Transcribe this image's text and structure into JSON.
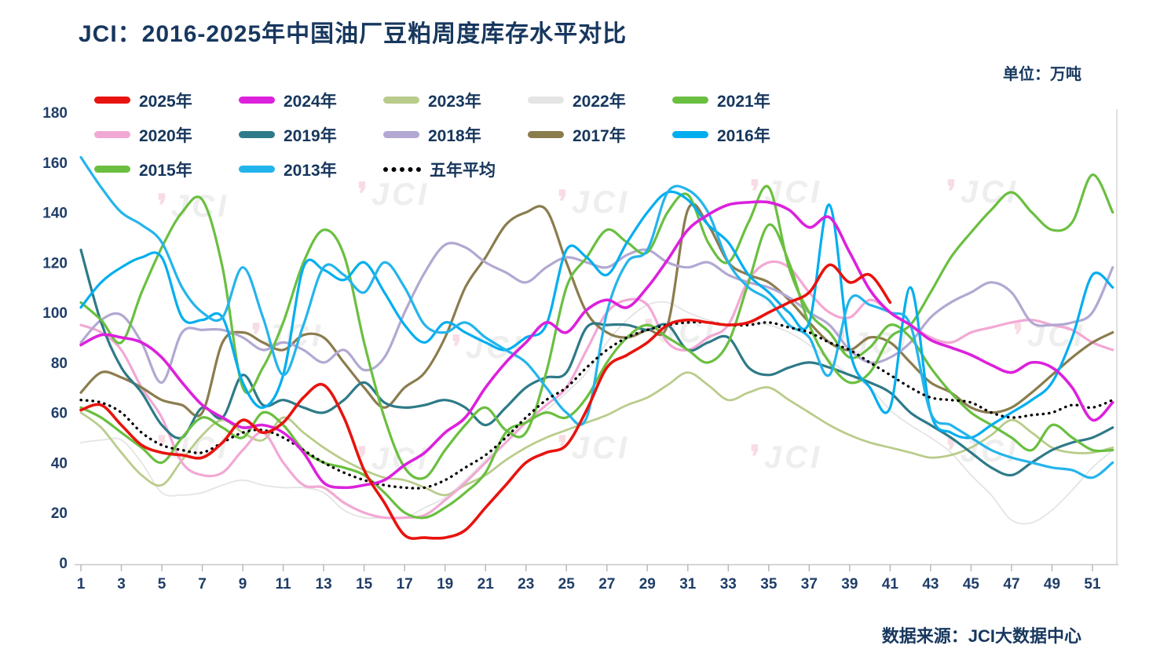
{
  "header": {
    "title": "JCI：2016-2025年中国油厂豆粕周度库存水平对比",
    "unit_label": "单位：万吨"
  },
  "footer": {
    "source": "数据来源：JCI大数据中心"
  },
  "watermark": {
    "text": "JCI"
  },
  "legend": {
    "rows": [
      [
        {
          "label": "2025年",
          "color": "#e8130e"
        },
        {
          "label": "2024年",
          "color": "#dc21dc"
        },
        {
          "label": "2023年",
          "color": "#b9cc8b"
        },
        {
          "label": "2022年",
          "color": "#e4e4e4"
        },
        {
          "label": "2021年",
          "color": "#6abf40"
        }
      ],
      [
        {
          "label": "2020年",
          "color": "#f2a8d4"
        },
        {
          "label": "2019年",
          "color": "#2e7a88"
        },
        {
          "label": "2018年",
          "color": "#b2a8d2"
        },
        {
          "label": "2017年",
          "color": "#8b7c4e"
        },
        {
          "label": "2016年",
          "color": "#00aeef"
        }
      ],
      [
        {
          "label": "2015年",
          "color": "#6abf40"
        },
        {
          "label": "2013年",
          "color": "#24b4ec"
        },
        {
          "label": "五年平均",
          "color": "#000000",
          "style": "dotted"
        }
      ]
    ]
  },
  "chart_data": {
    "type": "line",
    "title": "JCI：2016-2025年中国油厂豆粕周度库存水平对比",
    "unit": "万吨",
    "xlabel": "",
    "ylabel": "",
    "x_range": [
      1,
      52
    ],
    "x_ticks": [
      1,
      3,
      5,
      7,
      9,
      11,
      13,
      15,
      17,
      19,
      21,
      23,
      25,
      27,
      29,
      31,
      33,
      35,
      37,
      39,
      41,
      43,
      45,
      47,
      49,
      51
    ],
    "ylim": [
      0,
      180
    ],
    "y_ticks": [
      0,
      20,
      40,
      60,
      80,
      100,
      120,
      140,
      160,
      180
    ],
    "grid": false,
    "legend_position": "top-left-inside",
    "series": [
      {
        "name": "2025年",
        "color": "#e8130e",
        "width": 3.6,
        "values": [
          61,
          63,
          55,
          47,
          44,
          43,
          42,
          48,
          57,
          52,
          56,
          66,
          71,
          58,
          37,
          24,
          11,
          10,
          10,
          13,
          22,
          31,
          40,
          44,
          47,
          61,
          78,
          83,
          88,
          95,
          97,
          96,
          95,
          96,
          100,
          104,
          108,
          119,
          112,
          115,
          104
        ]
      },
      {
        "name": "2024年",
        "color": "#dc21dc",
        "width": 3.6,
        "values": [
          87,
          91,
          90,
          88,
          82,
          72,
          63,
          58,
          54,
          55,
          52,
          44,
          32,
          30,
          31,
          33,
          39,
          44,
          52,
          58,
          70,
          80,
          88,
          96,
          92,
          101,
          105,
          102,
          110,
          121,
          133,
          139,
          143,
          144,
          144,
          141,
          134,
          138,
          124,
          109,
          100,
          95,
          89,
          86,
          83,
          79,
          76,
          80,
          78,
          70,
          57,
          64
        ]
      },
      {
        "name": "2023年",
        "color": "#b9cc8b",
        "width": 2.8,
        "values": [
          60,
          54,
          44,
          35,
          31,
          41,
          51,
          57,
          52,
          49,
          58,
          52,
          46,
          41,
          37,
          34,
          33,
          30,
          27,
          31,
          35,
          41,
          46,
          50,
          53,
          56,
          59,
          63,
          66,
          71,
          76,
          71,
          65,
          68,
          70,
          65,
          60,
          55,
          51,
          48,
          46,
          44,
          42,
          43,
          46,
          51,
          57,
          52,
          46,
          44,
          44,
          46
        ]
      },
      {
        "name": "2022年",
        "color": "#e4e4e4",
        "width": 1.8,
        "values": [
          48,
          49,
          49,
          40,
          28,
          27,
          28,
          31,
          33,
          31,
          30,
          30,
          28,
          21,
          18,
          18,
          18,
          22,
          26,
          33,
          41,
          50,
          56,
          61,
          68,
          76,
          88,
          97,
          103,
          104,
          100,
          97,
          95,
          96,
          95,
          92,
          87,
          81,
          75,
          70,
          61,
          55,
          50,
          44,
          35,
          27,
          17,
          16,
          21,
          29,
          38,
          45
        ]
      },
      {
        "name": "2021年",
        "color": "#6abf40",
        "width": 3.2,
        "values": [
          104,
          97,
          88,
          108,
          126,
          140,
          145,
          118,
          70,
          78,
          96,
          120,
          133,
          123,
          88,
          58,
          38,
          34,
          45,
          55,
          62,
          53,
          52,
          76,
          110,
          122,
          133,
          128,
          124,
          140,
          147,
          128,
          120,
          136,
          150,
          118,
          100,
          92,
          82,
          86,
          95,
          90,
          78,
          68,
          60,
          55,
          50,
          45,
          55,
          50,
          45,
          45
        ]
      },
      {
        "name": "2020年",
        "color": "#f2a8d4",
        "width": 3.2,
        "values": [
          95,
          92,
          85,
          70,
          58,
          40,
          35,
          36,
          45,
          52,
          40,
          31,
          30,
          24,
          20,
          18,
          18,
          19,
          25,
          32,
          40,
          48,
          56,
          63,
          70,
          85,
          100,
          105,
          103,
          88,
          85,
          90,
          95,
          113,
          120,
          118,
          108,
          100,
          98,
          105,
          100,
          95,
          90,
          88,
          92,
          94,
          96,
          97,
          95,
          93,
          88,
          85
        ]
      },
      {
        "name": "2019年",
        "color": "#2e7a88",
        "width": 3.2,
        "values": [
          125,
          96,
          78,
          68,
          55,
          50,
          62,
          58,
          75,
          63,
          65,
          62,
          60,
          65,
          72,
          64,
          62,
          63,
          65,
          62,
          55,
          62,
          70,
          74,
          76,
          94,
          95,
          95,
          93,
          95,
          85,
          88,
          90,
          78,
          75,
          78,
          80,
          78,
          75,
          72,
          68,
          60,
          55,
          50,
          44,
          38,
          35,
          40,
          45,
          48,
          50,
          54
        ]
      },
      {
        "name": "2018年",
        "color": "#b2a8d2",
        "width": 3.2,
        "values": [
          88,
          97,
          99,
          88,
          72,
          92,
          93,
          93,
          90,
          85,
          88,
          85,
          80,
          85,
          77,
          82,
          100,
          116,
          127,
          126,
          120,
          116,
          112,
          118,
          122,
          120,
          118,
          123,
          125,
          120,
          118,
          120,
          115,
          112,
          110,
          106,
          100,
          95,
          85,
          80,
          82,
          88,
          98,
          104,
          108,
          112,
          108,
          96,
          95,
          96,
          100,
          118
        ]
      },
      {
        "name": "2017年",
        "color": "#8b7c4e",
        "width": 3.2,
        "values": [
          68,
          76,
          74,
          70,
          65,
          63,
          60,
          88,
          92,
          88,
          85,
          91,
          90,
          80,
          70,
          62,
          70,
          76,
          90,
          110,
          122,
          135,
          140,
          141,
          120,
          100,
          92,
          90,
          93,
          95,
          141,
          135,
          120,
          115,
          112,
          105,
          96,
          88,
          85,
          90,
          88,
          80,
          72,
          68,
          62,
          60,
          62,
          68,
          75,
          82,
          88,
          92
        ]
      },
      {
        "name": "2016年",
        "color": "#00aeef",
        "width": 3.2,
        "values": [
          102,
          112,
          118,
          122,
          122,
          98,
          97,
          98,
          72,
          62,
          75,
          118,
          117,
          113,
          120,
          108,
          95,
          88,
          96,
          92,
          88,
          85,
          90,
          95,
          125,
          122,
          115,
          128,
          140,
          148,
          145,
          135,
          128,
          115,
          108,
          100,
          96,
          143,
          85,
          70,
          62,
          110,
          60,
          52,
          50,
          55,
          60,
          65,
          72,
          90,
          115,
          110
        ]
      },
      {
        "name": "2015年",
        "color": "#6abf40",
        "width": 3.2,
        "values": [
          62,
          58,
          52,
          46,
          40,
          50,
          58,
          54,
          50,
          60,
          55,
          45,
          40,
          38,
          35,
          28,
          20,
          18,
          22,
          28,
          36,
          52,
          56,
          60,
          58,
          66,
          80,
          90,
          95,
          90,
          85,
          80,
          88,
          112,
          135,
          120,
          95,
          80,
          72,
          76,
          90,
          95,
          108,
          122,
          132,
          141,
          148,
          140,
          133,
          136,
          155,
          140
        ]
      },
      {
        "name": "2013年",
        "color": "#24b4ec",
        "width": 3.2,
        "values": [
          162,
          150,
          140,
          135,
          128,
          110,
          100,
          98,
          118,
          98,
          75,
          95,
          118,
          115,
          108,
          120,
          110,
          95,
          92,
          96,
          90,
          85,
          80,
          70,
          60,
          58,
          100,
          120,
          125,
          148,
          149,
          140,
          120,
          110,
          105,
          95,
          90,
          75,
          105,
          103,
          100,
          95,
          60,
          55,
          50,
          45,
          42,
          40,
          38,
          37,
          34,
          40
        ]
      },
      {
        "name": "五年平均",
        "color": "#000000",
        "width": 3.3,
        "dash": true,
        "values": [
          65,
          64,
          60,
          52,
          47,
          45,
          44,
          48,
          52,
          53,
          50,
          45,
          40,
          36,
          33,
          31,
          30,
          30,
          33,
          38,
          43,
          50,
          58,
          65,
          70,
          78,
          85,
          90,
          93,
          95,
          96,
          96,
          95,
          95,
          96,
          94,
          92,
          88,
          85,
          80,
          75,
          70,
          66,
          65,
          64,
          60,
          58,
          59,
          60,
          63,
          62,
          65
        ]
      }
    ]
  }
}
